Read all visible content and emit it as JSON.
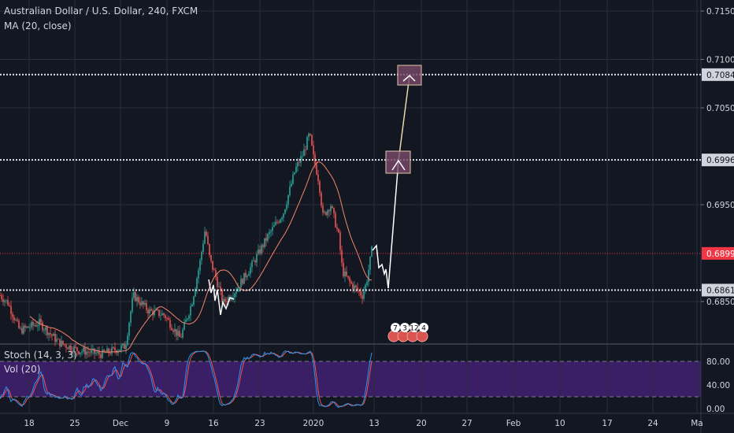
{
  "header": {
    "symbol_title": "Australian Dollar / U.S. Dollar, 240, FXCM",
    "ma_legend": "MA (20, close)",
    "stoch_legend": "Stoch (14, 3, 3)",
    "vol_legend": "Vol (20)"
  },
  "colors": {
    "background": "#131722",
    "grid": "#2a2e39",
    "up": "#26a69a",
    "down": "#ef5350",
    "ma": "#f0876a",
    "stoch_k": "#2196f3",
    "stoch_d": "#ef5350",
    "stoch_band": "#3b1f66",
    "drawing": "#ffffff",
    "last_price": "#f23645",
    "box_fill": "#7b4a6b"
  },
  "chart_data": {
    "type": "candlestick",
    "ylim": [
      0.6795,
      0.7163
    ],
    "price_ticks": [
      "0.71500",
      "0.71000",
      "0.70500",
      "0.69500",
      "0.68500"
    ],
    "price_tick_values": [
      0.715,
      0.71,
      0.705,
      0.695,
      0.685
    ],
    "marked_levels": [
      {
        "label": "0.70843",
        "value": 0.70843,
        "style": "dotted-white"
      },
      {
        "label": "0.69962",
        "value": 0.69962,
        "style": "dotted-white"
      },
      {
        "label": "0.68997",
        "value": 0.68997,
        "style": "last-price"
      },
      {
        "label": "0.68618",
        "value": 0.68618,
        "style": "dotted-white"
      }
    ],
    "time_ticks": [
      "18",
      "25",
      "Dec",
      "9",
      "16",
      "23",
      "2020",
      "13",
      "20",
      "27",
      "Feb",
      "10",
      "17",
      "24",
      "Ma"
    ],
    "close_path": [
      [
        "2019-11-13T14:00",
        0.68565
      ],
      [
        "2019-11-14T19:00",
        0.68484
      ],
      [
        "2019-11-16T14:00",
        0.68199
      ],
      [
        "2019-11-19T13:00",
        0.6828
      ],
      [
        "2019-11-22T12:00",
        0.68077
      ],
      [
        "2019-11-25T11:00",
        0.67996
      ],
      [
        "2019-11-29T01:00",
        0.67955
      ],
      [
        "2019-12-02T14:00",
        0.68037
      ],
      [
        "2019-12-03T19:00",
        0.68565
      ],
      [
        "2019-12-06T04:00",
        0.68402
      ],
      [
        "2019-12-08T12:00",
        0.68362
      ],
      [
        "2019-12-10T22:00",
        0.68118
      ],
      [
        "2019-12-12T16:00",
        0.68484
      ],
      [
        "2019-12-13T21:00",
        0.6889
      ],
      [
        "2019-12-14T17:00",
        0.69256
      ],
      [
        "2019-12-15T10:00",
        0.68931
      ],
      [
        "2019-12-16T06:00",
        0.68768
      ],
      [
        "2019-12-17T10:00",
        0.68484
      ],
      [
        "2019-12-19T05:00",
        0.68606
      ],
      [
        "2019-12-21T14:00",
        0.6885
      ],
      [
        "2019-12-24T08:00",
        0.69175
      ],
      [
        "2019-12-26T23:00",
        0.69419
      ],
      [
        "2019-12-28T23:00",
        0.69866
      ],
      [
        "2019-12-30T07:00",
        0.70028
      ],
      [
        "2019-12-31T08:00",
        0.70232
      ],
      [
        "2020-01-01T00:00",
        0.69988
      ],
      [
        "2020-01-02T02:00",
        0.69744
      ],
      [
        "2020-01-02T21:00",
        0.69378
      ],
      [
        "2020-01-04T10:00",
        0.695
      ],
      [
        "2020-01-06T00:00",
        0.69175
      ],
      [
        "2020-01-06T18:00",
        0.68809
      ],
      [
        "2020-01-08T08:00",
        0.68687
      ],
      [
        "2020-01-10T16:00",
        0.68565
      ],
      [
        "2020-01-11T11:00",
        0.68687
      ],
      [
        "2020-01-12T13:00",
        0.69028
      ]
    ],
    "indicators": {
      "ma": {
        "period": 20,
        "source": "close"
      },
      "stoch": {
        "k": 14,
        "smooth_k": 3,
        "smooth_d": 3,
        "ticks": [
          "80.00",
          "40.00",
          "0.00"
        ],
        "tick_values": [
          80,
          40,
          0
        ],
        "bands": [
          80,
          20
        ]
      }
    },
    "projection_targets": [
      0.69962,
      0.70843
    ],
    "event_badges": [
      "7",
      "3",
      "12",
      "4"
    ]
  }
}
